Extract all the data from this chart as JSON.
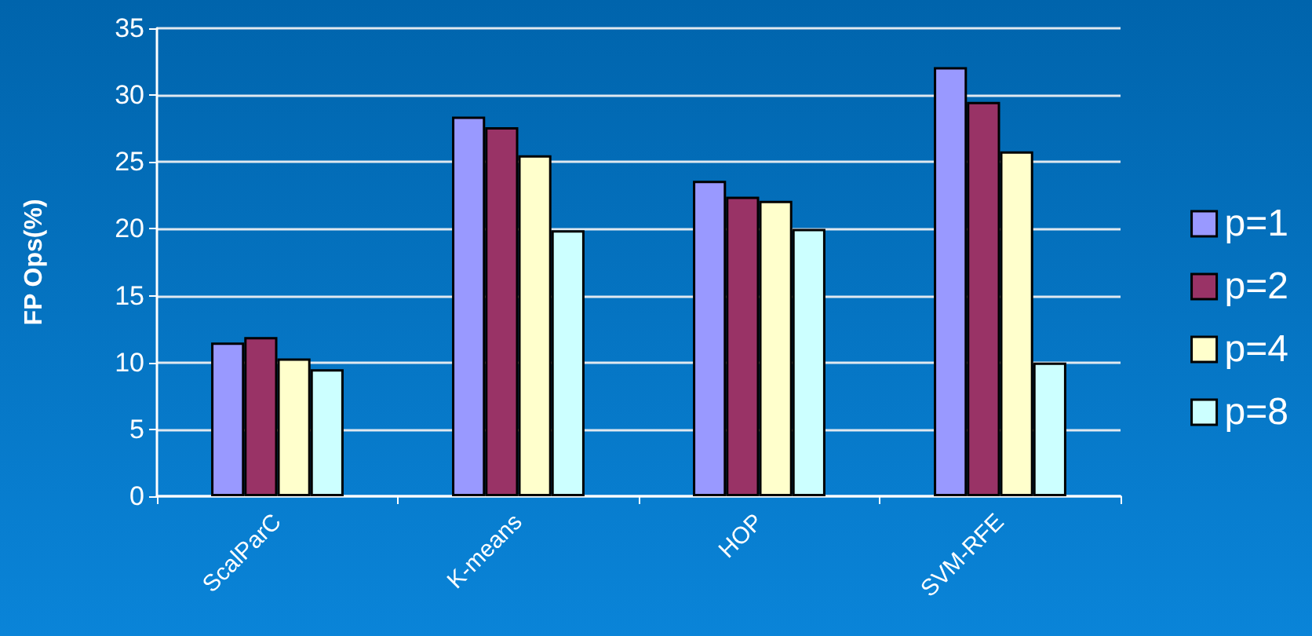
{
  "chart_data": {
    "type": "bar",
    "ylabel": "FP Ops(%)",
    "categories": [
      "ScalParC",
      "K-means",
      "HOP",
      "SVM-RFE"
    ],
    "series": [
      {
        "name": "p=1",
        "color": "#9999ff",
        "values": [
          11.5,
          28.4,
          23.6,
          32.1
        ]
      },
      {
        "name": "p=2",
        "color": "#993366",
        "values": [
          11.9,
          27.6,
          22.4,
          29.5
        ]
      },
      {
        "name": "p=4",
        "color": "#ffffcc",
        "values": [
          10.3,
          25.5,
          22.1,
          25.8
        ]
      },
      {
        "name": "p=8",
        "color": "#ccffff",
        "values": [
          9.5,
          19.9,
          20.0,
          10.0
        ]
      }
    ],
    "ylim": [
      0,
      35
    ],
    "yticks": [
      0,
      5,
      10,
      15,
      20,
      25,
      30,
      35
    ],
    "grid": "y",
    "legend": "right"
  }
}
